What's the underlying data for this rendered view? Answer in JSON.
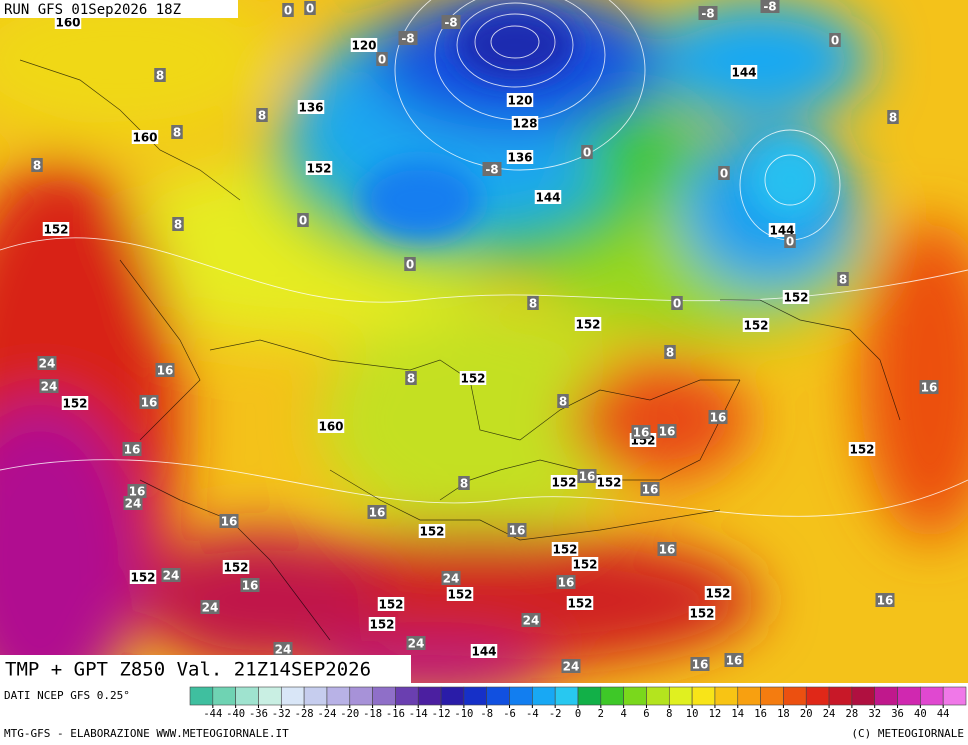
{
  "header": {
    "run": "RUN GFS 01Sep2026 18Z"
  },
  "map": {
    "title": "TMP + GPT Z850 Val. 21Z14SEP2026",
    "height_labels": [
      160,
      120,
      136,
      160,
      120,
      128,
      136,
      152,
      144,
      144,
      144,
      152,
      152,
      152,
      152,
      152,
      152,
      160,
      152,
      152,
      152,
      152,
      152,
      152,
      152,
      152,
      152,
      152,
      152,
      152,
      152,
      152,
      152,
      144
    ],
    "temperature_labels": [
      -8,
      -8,
      -8,
      -8,
      -8,
      0,
      0,
      0,
      0,
      0,
      0,
      0,
      0,
      0,
      0,
      8,
      8,
      8,
      8,
      8,
      8,
      8,
      8,
      8,
      8,
      8,
      8,
      24,
      24,
      24,
      24,
      24,
      24,
      24,
      24,
      24,
      24,
      16,
      16,
      16,
      16,
      16,
      16,
      16,
      16,
      16,
      16,
      16,
      16,
      16,
      16,
      16,
      16,
      16,
      16,
      16
    ]
  },
  "footer": {
    "source": "DATI NCEP GFS 0.25°",
    "credit_left": "MTG-GFS - ELABORAZIONE WWW.METEOGIORNALE.IT",
    "credit_right": "(C) METEOGIORNALE"
  },
  "colorbar": {
    "ticks": [
      -44,
      -40,
      -36,
      -32,
      -28,
      -24,
      -20,
      -18,
      -16,
      -14,
      -12,
      -10,
      -8,
      -6,
      -4,
      -2,
      0,
      2,
      4,
      6,
      8,
      10,
      12,
      14,
      16,
      18,
      20,
      24,
      28,
      32,
      36,
      40,
      44
    ],
    "colors": [
      "#3fbf9f",
      "#6fd3b3",
      "#9fe3cf",
      "#c9efe3",
      "#d9e6f7",
      "#c6cdee",
      "#b8b2e6",
      "#a792d8",
      "#8f6fc8",
      "#6a3fb0",
      "#4b1fa0",
      "#2a1ca8",
      "#1630c8",
      "#1150e0",
      "#127ef0",
      "#18a8f4",
      "#28c8f0",
      "#12b048",
      "#3ec828",
      "#7ad81c",
      "#b4e41e",
      "#e0f020",
      "#f8e418",
      "#f8c414",
      "#f8a010",
      "#f47c10",
      "#ec5010",
      "#e02818",
      "#c81828",
      "#b01040",
      "#c0188c",
      "#d028b0",
      "#e048d0",
      "#f078e8"
    ]
  }
}
